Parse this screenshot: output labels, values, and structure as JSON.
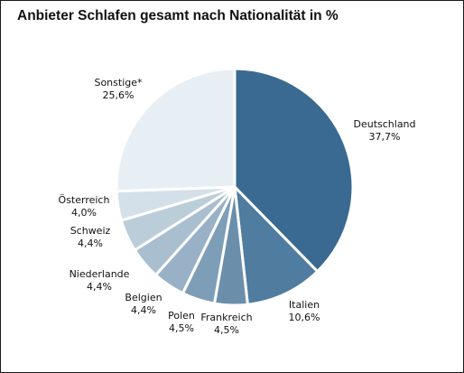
{
  "chart_data": {
    "type": "pie",
    "title": "Anbieter Schlafen gesamt nach Nationalität in %",
    "slices": [
      {
        "name": "Deutschland",
        "value": 37.7,
        "value_label": "37,7%",
        "color": "#3a6a91"
      },
      {
        "name": "Italien",
        "value": 10.6,
        "value_label": "10,6%",
        "color": "#4f7c9f"
      },
      {
        "name": "Frankreich",
        "value": 4.5,
        "value_label": "4,5%",
        "color": "#6b8fab"
      },
      {
        "name": "Polen",
        "value": 4.5,
        "value_label": "4,5%",
        "color": "#7e9eb7"
      },
      {
        "name": "Belgien",
        "value": 4.4,
        "value_label": "4,4%",
        "color": "#98b1c6"
      },
      {
        "name": "Niederlande",
        "value": 4.4,
        "value_label": "4,4%",
        "color": "#a9bfd0"
      },
      {
        "name": "Schweiz",
        "value": 4.4,
        "value_label": "4,4%",
        "color": "#bccdda"
      },
      {
        "name": "Österreich",
        "value": 4.0,
        "value_label": "4,0%",
        "color": "#d3e0e9"
      },
      {
        "name": "Sonstige*",
        "value": 25.6,
        "value_label": "25,6%",
        "color": "#e8eff4"
      }
    ]
  }
}
